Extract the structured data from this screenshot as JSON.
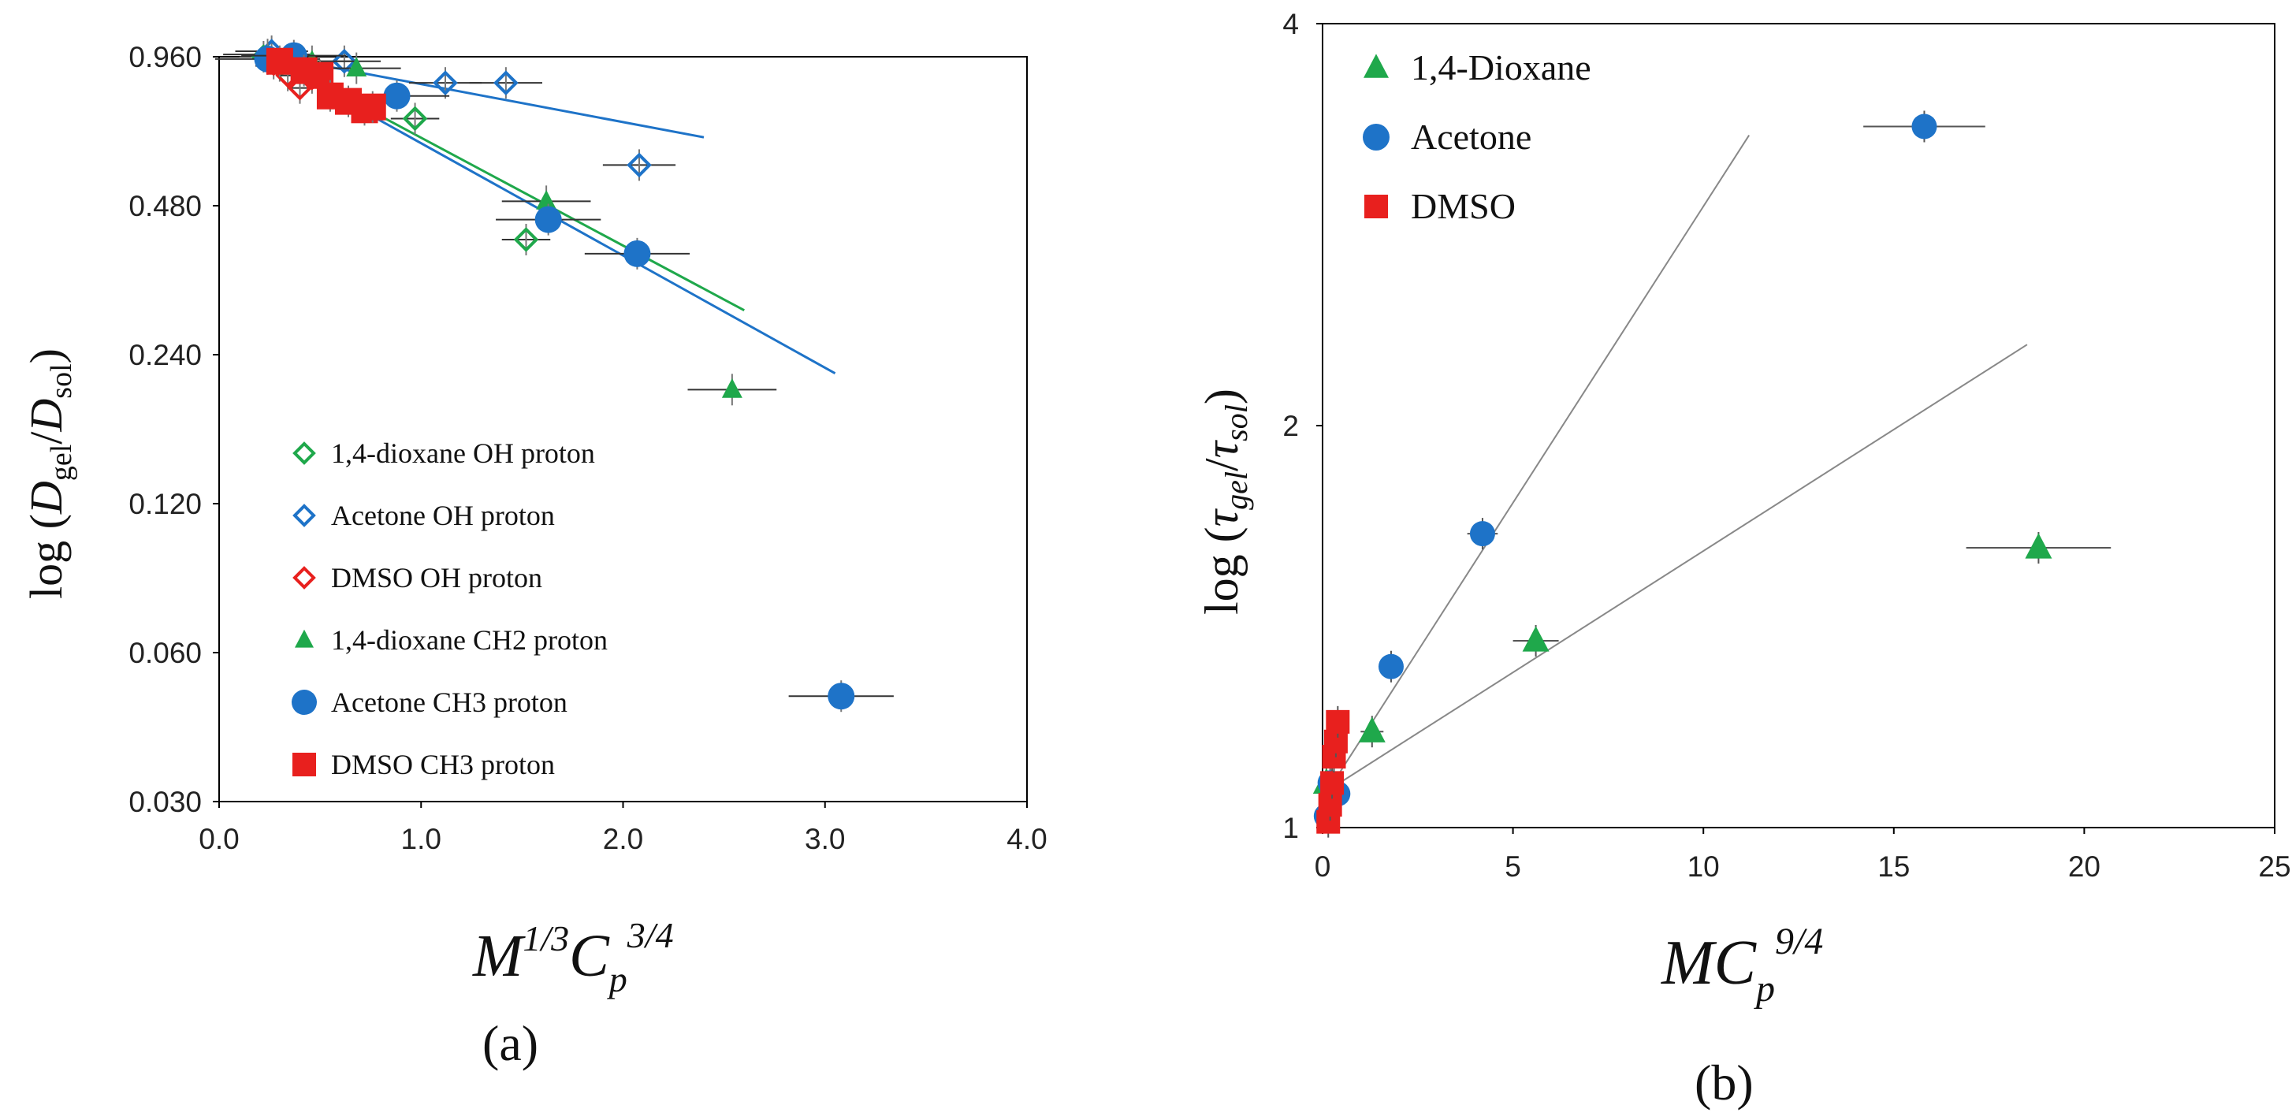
{
  "chart_data": [
    {
      "type": "scatter",
      "panel_label": "(a)",
      "xlabel": {
        "base": "M",
        "sup1": "1/3",
        "mid": "C",
        "sub": "p",
        "sup2": "3/4"
      },
      "ylabel": {
        "pre": "log (",
        "a": "D",
        "a_sub": "gel",
        "slash": "/",
        "b": "D",
        "b_sub": "sol",
        "post": ")"
      },
      "x_range": [
        0.0,
        4.0
      ],
      "x_ticks": [
        0.0,
        1.0,
        2.0,
        3.0,
        4.0
      ],
      "x_tick_labels": [
        "0.0",
        "1.0",
        "2.0",
        "3.0",
        "4.0"
      ],
      "y_scale": "log2",
      "y_range": [
        0.03,
        0.96
      ],
      "y_ticks": [
        0.03,
        0.06,
        0.12,
        0.24,
        0.48,
        0.96
      ],
      "y_tick_labels": [
        "0.030",
        "0.060",
        "0.120",
        "0.240",
        "0.480",
        "0.960"
      ],
      "legend": [
        {
          "label": "1,4-dioxane OH proton",
          "marker": "diamond-open",
          "color": "#1FA84B"
        },
        {
          "label": "Acetone OH proton",
          "marker": "diamond-open",
          "color": "#1E73C8"
        },
        {
          "label": "DMSO OH proton",
          "marker": "diamond-open",
          "color": "#E8201E"
        },
        {
          "label": "1,4-dioxane CH2 proton",
          "marker": "triangle",
          "color": "#1FA84B"
        },
        {
          "label": "Acetone CH3 proton",
          "marker": "circle",
          "color": "#1E73C8"
        },
        {
          "label": "DMSO CH3 proton",
          "marker": "square",
          "color": "#E8201E"
        }
      ],
      "series": [
        {
          "name": "1,4-dioxane OH proton",
          "marker": "diamond-open",
          "color": "#1FA84B",
          "points": [
            [
              0.22,
              0.96
            ],
            [
              0.3,
              0.92
            ],
            [
              0.4,
              0.9
            ],
            [
              0.97,
              0.72
            ],
            [
              1.52,
              0.41
            ]
          ],
          "xerr": 0.12
        },
        {
          "name": "Acetone OH proton",
          "marker": "diamond-open",
          "color": "#1E73C8",
          "points": [
            [
              0.26,
              0.985
            ],
            [
              0.62,
              0.94
            ],
            [
              1.12,
              0.85
            ],
            [
              1.42,
              0.85
            ],
            [
              2.08,
              0.58
            ]
          ],
          "xerr": 0.18
        },
        {
          "name": "DMSO OH proton",
          "marker": "diamond-open",
          "color": "#E8201E",
          "points": [
            [
              0.27,
              0.93
            ],
            [
              0.34,
              0.88
            ],
            [
              0.4,
              0.83
            ],
            [
              0.46,
              0.87
            ]
          ],
          "xerr": 0.05
        },
        {
          "name": "1,4-dioxane CH2 proton",
          "marker": "triangle",
          "color": "#1FA84B",
          "points": [
            [
              0.24,
              0.97
            ],
            [
              0.46,
              0.94
            ],
            [
              0.68,
              0.91
            ],
            [
              1.62,
              0.49
            ],
            [
              2.54,
              0.204
            ]
          ],
          "xerr": 0.22
        },
        {
          "name": "Acetone CH3 proton",
          "marker": "circle",
          "color": "#1E73C8",
          "points": [
            [
              0.24,
              0.95
            ],
            [
              0.37,
              0.965
            ],
            [
              0.88,
              0.8
            ],
            [
              1.63,
              0.45
            ],
            [
              2.07,
              0.384
            ],
            [
              3.08,
              0.049
            ]
          ],
          "xerr": 0.26
        },
        {
          "name": "DMSO CH3 proton",
          "marker": "square",
          "color": "#E8201E",
          "points": [
            [
              0.3,
              0.94
            ],
            [
              0.42,
              0.9
            ],
            [
              0.5,
              0.88
            ],
            [
              0.55,
              0.8
            ],
            [
              0.64,
              0.78
            ],
            [
              0.72,
              0.75
            ],
            [
              0.76,
              0.76
            ]
          ],
          "xerr": 0.0
        }
      ],
      "fit_lines": [
        {
          "color": "#1E73C8",
          "from": [
            0.25,
            0.965
          ],
          "to": [
            2.4,
            0.66
          ]
        },
        {
          "color": "#1FA84B",
          "from": [
            0.25,
            0.96
          ],
          "to": [
            2.6,
            0.295
          ]
        },
        {
          "color": "#1E73C8",
          "from": [
            0.25,
            0.95
          ],
          "to": [
            3.05,
            0.22
          ]
        }
      ]
    },
    {
      "type": "scatter",
      "panel_label": "(b)",
      "xlabel": {
        "base": "MC",
        "sub": "p",
        "sup": "9/4"
      },
      "ylabel": {
        "pre": "log (",
        "a": "τ",
        "a_sub": "gel",
        "slash": "/",
        "b": "τ",
        "b_sub": "sol",
        "post": ")"
      },
      "x_range": [
        0,
        25
      ],
      "x_ticks": [
        0,
        5,
        10,
        15,
        20,
        25
      ],
      "x_tick_labels": [
        "0",
        "5",
        "10",
        "15",
        "20",
        "25"
      ],
      "y_scale": "log10",
      "y_range": [
        1,
        4
      ],
      "y_ticks": [
        1,
        2,
        4
      ],
      "y_tick_labels": [
        "1",
        "2",
        "4"
      ],
      "legend": [
        {
          "label": "1,4-Dioxane",
          "marker": "triangle",
          "color": "#1FA84B"
        },
        {
          "label": "Acetone",
          "marker": "circle",
          "color": "#1E73C8"
        },
        {
          "label": "DMSO",
          "marker": "square",
          "color": "#E8201E"
        }
      ],
      "series": [
        {
          "name": "1,4-Dioxane",
          "marker": "triangle",
          "color": "#1FA84B",
          "points": [
            [
              0.1,
              1.08
            ],
            [
              1.3,
              1.18
            ],
            [
              5.6,
              1.38
            ],
            [
              18.8,
              1.62
            ]
          ],
          "xerr": [
            0,
            0.3,
            0.6,
            1.9
          ]
        },
        {
          "name": "Acetone",
          "marker": "circle",
          "color": "#1E73C8",
          "points": [
            [
              0.1,
              1.02
            ],
            [
              0.2,
              1.08
            ],
            [
              0.4,
              1.06
            ],
            [
              1.8,
              1.32
            ],
            [
              4.2,
              1.66
            ],
            [
              15.8,
              3.35
            ]
          ],
          "xerr": [
            0,
            0,
            0,
            0.1,
            0.4,
            1.6
          ]
        },
        {
          "name": "DMSO",
          "marker": "square",
          "color": "#E8201E",
          "points": [
            [
              0.15,
              1.01
            ],
            [
              0.2,
              1.04
            ],
            [
              0.25,
              1.08
            ],
            [
              0.3,
              1.13
            ],
            [
              0.35,
              1.16
            ],
            [
              0.4,
              1.2
            ]
          ],
          "xerr": [
            0,
            0,
            0,
            0,
            0,
            0
          ]
        }
      ],
      "fit_lines": [
        {
          "color": "#888888",
          "from": [
            0,
            1.05
          ],
          "to": [
            11.2,
            3.3
          ]
        },
        {
          "color": "#888888",
          "from": [
            0,
            1.06
          ],
          "to": [
            18.5,
            2.3
          ]
        }
      ]
    }
  ]
}
